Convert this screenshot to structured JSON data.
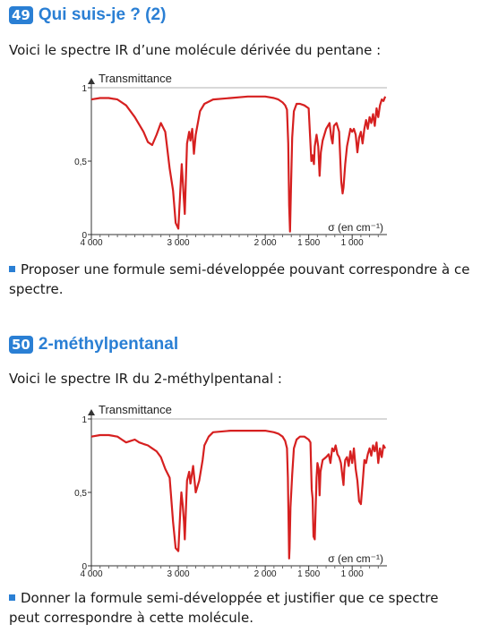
{
  "exercise1": {
    "number": "49",
    "title": "Qui suis-je ? (2)",
    "intro": "Voici le spectre IR d’une molécule dérivée du pentane :",
    "question": "Proposer une formule semi-développée pouvant correspondre à ce spectre."
  },
  "exercise2": {
    "number": "50",
    "title": "2-méthylpentanal",
    "intro": "Voici le spectre IR du 2-méthylpentanal :",
    "question": "Donner la formule semi-développée et justifier que ce spectre peut correspondre à cette molécule."
  },
  "colors": {
    "accent": "#2a7fd4",
    "spectrum": "#d62020"
  },
  "chart_data": [
    {
      "type": "line",
      "ylabel": "Transmittance",
      "xlabel": "σ (en cm⁻¹)",
      "xlim": [
        4000,
        600
      ],
      "ylim": [
        0,
        1
      ],
      "x_ticks": [
        "4 000",
        "3 000",
        "2 000",
        "1 500",
        "1 000"
      ],
      "y_ticks": [
        "0",
        "0,5",
        "1"
      ],
      "x_tick_values": [
        4000,
        3000,
        2000,
        1500,
        1000
      ],
      "y_tick_values": [
        0,
        0.5,
        1
      ],
      "series": [
        {
          "x": [
            4000,
            3900,
            3800,
            3700,
            3600,
            3500,
            3400,
            3350,
            3300,
            3250,
            3200,
            3150,
            3100,
            3060,
            3030,
            3000,
            2970,
            2960,
            2940,
            2925,
            2900,
            2875,
            2860,
            2840,
            2820,
            2800,
            2750,
            2700,
            2600,
            2400,
            2200,
            2000,
            1900,
            1850,
            1800,
            1770,
            1750,
            1735,
            1725,
            1715,
            1705,
            1690,
            1670,
            1640,
            1600,
            1550,
            1500,
            1470,
            1455,
            1440,
            1430,
            1410,
            1390,
            1375,
            1360,
            1340,
            1300,
            1260,
            1240,
            1225,
            1210,
            1180,
            1150,
            1125,
            1110,
            1100,
            1080,
            1060,
            1040,
            1020,
            1000,
            980,
            960,
            940,
            920,
            900,
            880,
            860,
            840,
            820,
            800,
            780,
            760,
            740,
            720,
            700,
            680,
            660,
            640,
            620
          ],
          "y": [
            0.92,
            0.93,
            0.93,
            0.92,
            0.88,
            0.8,
            0.7,
            0.63,
            0.61,
            0.68,
            0.76,
            0.7,
            0.45,
            0.3,
            0.08,
            0.04,
            0.38,
            0.48,
            0.28,
            0.14,
            0.62,
            0.7,
            0.64,
            0.72,
            0.55,
            0.68,
            0.84,
            0.89,
            0.92,
            0.93,
            0.94,
            0.94,
            0.93,
            0.92,
            0.9,
            0.88,
            0.85,
            0.62,
            0.2,
            0.02,
            0.3,
            0.66,
            0.84,
            0.89,
            0.89,
            0.88,
            0.86,
            0.5,
            0.54,
            0.48,
            0.6,
            0.68,
            0.6,
            0.4,
            0.56,
            0.64,
            0.72,
            0.76,
            0.66,
            0.62,
            0.74,
            0.76,
            0.7,
            0.36,
            0.28,
            0.32,
            0.48,
            0.6,
            0.66,
            0.72,
            0.7,
            0.72,
            0.68,
            0.56,
            0.66,
            0.7,
            0.62,
            0.72,
            0.78,
            0.72,
            0.8,
            0.76,
            0.82,
            0.74,
            0.86,
            0.8,
            0.88,
            0.92,
            0.91,
            0.94
          ]
        }
      ]
    },
    {
      "type": "line",
      "ylabel": "Transmittance",
      "xlabel": "σ (en cm⁻¹)",
      "xlim": [
        4000,
        600
      ],
      "ylim": [
        0,
        1
      ],
      "x_ticks": [
        "4 000",
        "3 000",
        "2 000",
        "1 500",
        "1 000"
      ],
      "y_ticks": [
        "0",
        "0,5",
        "1"
      ],
      "x_tick_values": [
        4000,
        3000,
        2000,
        1500,
        1000
      ],
      "y_tick_values": [
        0,
        0.5,
        1
      ],
      "series": [
        {
          "x": [
            4000,
            3900,
            3800,
            3700,
            3650,
            3600,
            3550,
            3500,
            3450,
            3400,
            3350,
            3300,
            3250,
            3200,
            3150,
            3100,
            3060,
            3030,
            3000,
            2975,
            2965,
            2950,
            2935,
            2925,
            2900,
            2875,
            2860,
            2830,
            2800,
            2760,
            2720,
            2700,
            2650,
            2600,
            2400,
            2200,
            2000,
            1900,
            1850,
            1800,
            1770,
            1750,
            1740,
            1730,
            1725,
            1720,
            1710,
            1690,
            1670,
            1640,
            1600,
            1550,
            1500,
            1480,
            1465,
            1455,
            1445,
            1430,
            1410,
            1400,
            1385,
            1375,
            1365,
            1340,
            1300,
            1270,
            1250,
            1230,
            1210,
            1190,
            1170,
            1150,
            1130,
            1110,
            1100,
            1090,
            1080,
            1060,
            1040,
            1020,
            1000,
            980,
            960,
            940,
            920,
            900,
            880,
            860,
            840,
            820,
            800,
            780,
            760,
            740,
            720,
            700,
            680,
            660,
            640,
            620
          ],
          "y": [
            0.88,
            0.89,
            0.89,
            0.88,
            0.86,
            0.84,
            0.85,
            0.86,
            0.84,
            0.83,
            0.82,
            0.8,
            0.78,
            0.74,
            0.66,
            0.6,
            0.3,
            0.12,
            0.1,
            0.4,
            0.5,
            0.42,
            0.3,
            0.18,
            0.58,
            0.64,
            0.56,
            0.68,
            0.5,
            0.58,
            0.72,
            0.82,
            0.88,
            0.91,
            0.92,
            0.92,
            0.92,
            0.91,
            0.9,
            0.88,
            0.85,
            0.8,
            0.6,
            0.25,
            0.05,
            0.12,
            0.4,
            0.62,
            0.8,
            0.86,
            0.88,
            0.88,
            0.86,
            0.84,
            0.52,
            0.46,
            0.2,
            0.18,
            0.6,
            0.7,
            0.66,
            0.48,
            0.64,
            0.72,
            0.74,
            0.76,
            0.7,
            0.8,
            0.78,
            0.82,
            0.76,
            0.74,
            0.7,
            0.6,
            0.55,
            0.66,
            0.72,
            0.74,
            0.68,
            0.78,
            0.7,
            0.8,
            0.66,
            0.58,
            0.44,
            0.42,
            0.56,
            0.72,
            0.7,
            0.76,
            0.8,
            0.75,
            0.82,
            0.78,
            0.84,
            0.7,
            0.8,
            0.74,
            0.82,
            0.8
          ]
        }
      ]
    }
  ]
}
